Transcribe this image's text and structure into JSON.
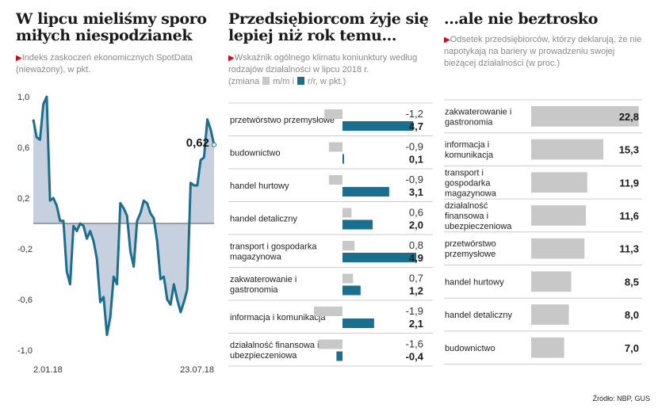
{
  "colors": {
    "teal": "#1b6f8e",
    "area": "#c6d0df",
    "gray_bar": "#c8c8c8",
    "red_marker": "#e2001a",
    "divider": "#cccccc"
  },
  "panel1": {
    "title": "W lipcu mieliśmy sporo miłych niespodzianek",
    "subtitle": "Indeks zaskoczeń ekonomicznych SpotData (nieważony), w pkt."
  },
  "panel2": {
    "title": "Przedsiębiorcom żyje się lepiej niż rok temu...",
    "subtitle": "Wskaźnik ogólnego klimatu koniunktury według rodzajów działalności w lipcu 2018 r.",
    "legend_prefix": "(zmiana",
    "legend_mm": "m/m i",
    "legend_rr": "r/r, w pkt.)"
  },
  "panel3": {
    "title": "...ale nie beztrosko",
    "subtitle": "Odsetek przedsiębiorców, którzy deklarują, że nie napotykają na bariery w prowadzeniu swojej bieżącej działalności (w proc.)"
  },
  "source": "Źródło: NBP, GUS",
  "chart_data": [
    {
      "type": "area",
      "ylim": [
        -1.0,
        1.0
      ],
      "y_ticks": [
        "1,0",
        "0,6",
        "0,2",
        "-0,2",
        "-0,6",
        "-1,0"
      ],
      "y_tick_values": [
        1.0,
        0.6,
        0.2,
        -0.2,
        -0.6,
        -1.0
      ],
      "x_tick_labels": [
        "2.01.18",
        "23.07.18"
      ],
      "x_tick_index": [
        0,
        32
      ],
      "last_value_label": "0,62",
      "last_value": 0.62,
      "values": [
        0.82,
        0.68,
        0.66,
        0.94,
        1.0,
        0.18,
        0.2,
        0.14,
        0.02,
        0.02,
        -0.38,
        -0.48,
        -0.02,
        -0.06,
        0.0,
        -0.02,
        -0.12,
        -0.06,
        -0.14,
        -0.28,
        -0.62,
        -0.58,
        -0.88,
        -0.74,
        -0.42,
        -0.48,
        0.16,
        0.12,
        0.06,
        -0.22,
        -0.34,
        0.02,
        0.08,
        0.18,
        0.16,
        0.08,
        0.04,
        -0.14,
        -0.44,
        -0.42,
        -0.6,
        -0.64,
        -0.48,
        -0.6,
        -0.7,
        -0.62,
        -0.52,
        0.32,
        0.3,
        0.3,
        0.5,
        0.52,
        0.82,
        0.74,
        0.62
      ]
    },
    {
      "type": "bar",
      "series": [
        {
          "name": "m/m"
        },
        {
          "name": "r/r"
        }
      ],
      "rows": [
        {
          "label": "przetwórstwo przemysłowe",
          "mm": -1.2,
          "mm_label": "-1,2",
          "rr": 4.7,
          "rr_label": "4,7"
        },
        {
          "label": "budownictwo",
          "mm": -0.9,
          "mm_label": "-0,9",
          "rr": 0.1,
          "rr_label": "0,1"
        },
        {
          "label": "handel hurtowy",
          "mm": -0.9,
          "mm_label": "-0,9",
          "rr": 3.1,
          "rr_label": "3,1"
        },
        {
          "label": "handel detaliczny",
          "mm": 0.6,
          "mm_label": "0,6",
          "rr": 2.0,
          "rr_label": "2,0"
        },
        {
          "label": "transport i gospodarka magazynowa",
          "mm": 0.8,
          "mm_label": "0,8",
          "rr": 4.9,
          "rr_label": "4,9"
        },
        {
          "label": "zakwaterowanie i gastronomia",
          "mm": 0.7,
          "mm_label": "0,7",
          "rr": 1.2,
          "rr_label": "1,2"
        },
        {
          "label": "informacja i komunikacja",
          "mm": -1.9,
          "mm_label": "-1,9",
          "rr": 2.1,
          "rr_label": "2,1"
        },
        {
          "label": "działalność finansowa i ubezpieczeniowa",
          "mm": -1.6,
          "mm_label": "-1,6",
          "rr": -0.4,
          "rr_label": "-0,4"
        }
      ]
    },
    {
      "type": "bar",
      "orientation": "horizontal",
      "rows": [
        {
          "label": "zakwaterowanie i gastronomia",
          "value": 22.8,
          "value_label": "22,8"
        },
        {
          "label": "informacja i komunikacja",
          "value": 15.3,
          "value_label": "15,3"
        },
        {
          "label": "transport i gospodarka magazynowa",
          "value": 11.9,
          "value_label": "11,9"
        },
        {
          "label": "działalność finansowa i ubezpieczeniowa",
          "value": 11.6,
          "value_label": "11,6"
        },
        {
          "label": "przetwórstwo przemysłowe",
          "value": 11.3,
          "value_label": "11,3"
        },
        {
          "label": "handel hurtowy",
          "value": 8.5,
          "value_label": "8,5"
        },
        {
          "label": "handel detaliczny",
          "value": 8.0,
          "value_label": "8,0"
        },
        {
          "label": "budownictwo",
          "value": 7.0,
          "value_label": "7,0"
        }
      ]
    }
  ]
}
